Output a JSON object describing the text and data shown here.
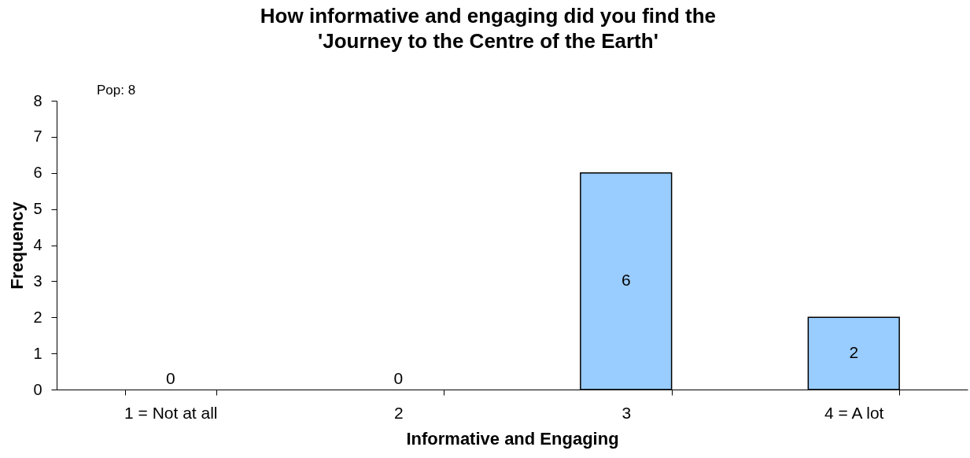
{
  "chart_data": {
    "type": "bar",
    "title": "How informative and engaging did you find the\n'Journey to the Centre of the Earth'",
    "xlabel": "Informative and Engaging",
    "ylabel": "Frequency",
    "categories": [
      "1 = Not at all",
      "2",
      "3",
      "4 = A lot"
    ],
    "values": [
      0,
      0,
      6,
      2
    ],
    "color": "#99ccff",
    "ylim": [
      0,
      8
    ],
    "yticks": [
      0,
      1,
      2,
      3,
      4,
      5,
      6,
      7,
      8
    ],
    "data_labels": true,
    "annotations": [
      "Pop: 8"
    ]
  }
}
